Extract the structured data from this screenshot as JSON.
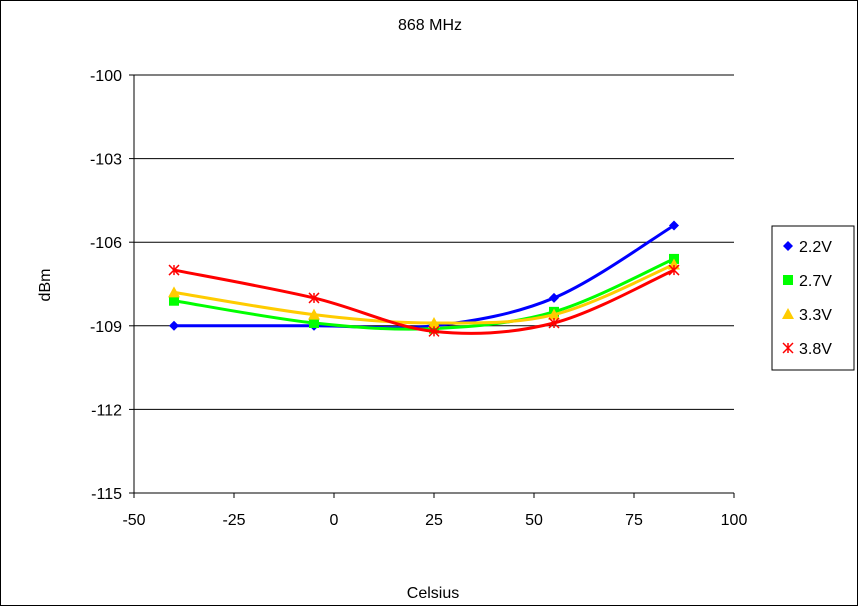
{
  "chart_data": {
    "type": "line",
    "title": "868 MHz",
    "xlabel": "Celsius",
    "ylabel": "dBm",
    "xlim": [
      -50,
      100
    ],
    "ylim": [
      -115,
      -100
    ],
    "xticks": [
      -50,
      -25,
      0,
      25,
      50,
      75,
      100
    ],
    "yticks": [
      -100,
      -103,
      -106,
      -109,
      -112,
      -115
    ],
    "grid": "horizontal",
    "legend_position": "right",
    "series": [
      {
        "name": "2.2V",
        "color": "#0000ff",
        "marker": "diamond",
        "points": [
          [
            -40,
            -109
          ],
          [
            -5,
            -109
          ],
          [
            25,
            -109
          ],
          [
            55,
            -108
          ],
          [
            85,
            -105.4
          ]
        ]
      },
      {
        "name": "2.7V",
        "color": "#00ff00",
        "marker": "square",
        "points": [
          [
            -40,
            -108.1
          ],
          [
            -5,
            -108.9
          ],
          [
            25,
            -109.1
          ],
          [
            55,
            -108.5
          ],
          [
            85,
            -106.6
          ]
        ]
      },
      {
        "name": "3.3V",
        "color": "#ffcc00",
        "marker": "triangle",
        "points": [
          [
            -40,
            -107.8
          ],
          [
            -5,
            -108.6
          ],
          [
            25,
            -108.9
          ],
          [
            55,
            -108.6
          ],
          [
            85,
            -106.8
          ]
        ]
      },
      {
        "name": "3.8V",
        "color": "#ff0000",
        "marker": "star",
        "points": [
          [
            -40,
            -107
          ],
          [
            -5,
            -108
          ],
          [
            25,
            -109.2
          ],
          [
            55,
            -108.9
          ],
          [
            85,
            -107
          ]
        ]
      }
    ]
  }
}
